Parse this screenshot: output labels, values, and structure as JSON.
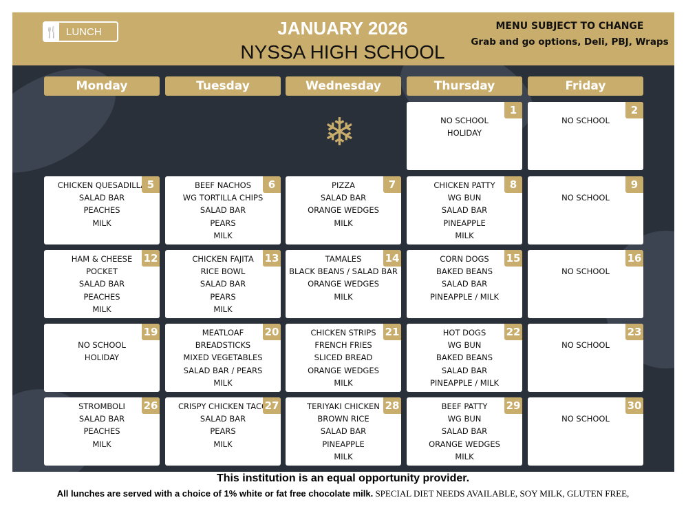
{
  "header": {
    "logo_label": "LUNCH",
    "month": "JANUARY 2026",
    "school": "NYSSA HIGH SCHOOL",
    "notice": "MENU SUBJECT TO CHANGE",
    "options": "Grab and go options, Deli, PBJ, Wraps"
  },
  "days": [
    "Monday",
    "Tuesday",
    "Wednesday",
    "Thursday",
    "Friday"
  ],
  "weeks": [
    [
      null,
      null,
      {
        "icon": "snowflake-icon"
      },
      {
        "num": "1",
        "lines": [
          "NO SCHOOL",
          "HOLIDAY"
        ]
      },
      {
        "num": "2",
        "lines": [
          "NO SCHOOL"
        ]
      }
    ],
    [
      {
        "num": "5",
        "lines": [
          "CHICKEN QUESADILLA",
          "SALAD BAR",
          "PEACHES",
          "MILK"
        ]
      },
      {
        "num": "6",
        "lines": [
          "BEEF NACHOS",
          "WG TORTILLA CHIPS",
          "SALAD BAR",
          "PEARS",
          "MILK"
        ]
      },
      {
        "num": "7",
        "lines": [
          "PIZZA",
          "SALAD BAR",
          "ORANGE WEDGES",
          "MILK"
        ]
      },
      {
        "num": "8",
        "lines": [
          "CHICKEN PATTY",
          "WG BUN",
          "SALAD BAR",
          "PINEAPPLE",
          "MILK"
        ]
      },
      {
        "num": "9",
        "lines": [
          "",
          "NO SCHOOL"
        ]
      }
    ],
    [
      {
        "num": "12",
        "lines": [
          "HAM & CHEESE",
          "POCKET",
          "SALAD BAR",
          "PEACHES",
          "MILK"
        ]
      },
      {
        "num": "13",
        "lines": [
          "CHICKEN FAJITA",
          "RICE BOWL",
          "SALAD BAR",
          "PEARS",
          "MILK"
        ]
      },
      {
        "num": "14",
        "lines": [
          "TAMALES",
          "BLACK BEANS / SALAD BAR",
          "ORANGE WEDGES",
          "MILK"
        ]
      },
      {
        "num": "15",
        "lines": [
          "CORN DOGS",
          "BAKED BEANS",
          "SALAD BAR",
          "PINEAPPLE / MILK"
        ]
      },
      {
        "num": "16",
        "lines": [
          "",
          "NO SCHOOL"
        ]
      }
    ],
    [
      {
        "num": "19",
        "lines": [
          "",
          "NO SCHOOL",
          "HOLIDAY"
        ]
      },
      {
        "num": "20",
        "lines": [
          "MEATLOAF",
          "BREADSTICKS",
          "MIXED VEGETABLES",
          "SALAD BAR / PEARS",
          "MILK"
        ]
      },
      {
        "num": "21",
        "lines": [
          "CHICKEN STRIPS",
          "FRENCH FRIES",
          "SLICED BREAD",
          "ORANGE WEDGES",
          "MILK"
        ]
      },
      {
        "num": "22",
        "lines": [
          "HOT DOGS",
          "WG BUN",
          "BAKED BEANS",
          "SALAD BAR",
          "PINEAPPLE / MILK"
        ]
      },
      {
        "num": "23",
        "lines": [
          "",
          "NO SCHOOL"
        ]
      }
    ],
    [
      {
        "num": "26",
        "lines": [
          "STROMBOLI",
          "SALAD BAR",
          "PEACHES",
          "MILK"
        ]
      },
      {
        "num": "27",
        "lines": [
          "CRISPY CHICKEN TACO",
          "SALAD BAR",
          "PEARS",
          "MILK"
        ]
      },
      {
        "num": "28",
        "lines": [
          "TERIYAKI CHICKEN",
          "BROWN RICE",
          "SALAD BAR",
          "PINEAPPLE",
          "MILK"
        ]
      },
      {
        "num": "29",
        "lines": [
          "BEEF PATTY",
          "WG BUN",
          "SALAD BAR",
          "ORANGE WEDGES",
          "MILK"
        ]
      },
      {
        "num": "30",
        "lines": [
          "",
          "NO SCHOOL"
        ]
      }
    ]
  ],
  "footer": {
    "line1": "This institution is an equal opportunity provider.",
    "line2_bold": "All lunches are served with a choice of 1% white or fat free chocolate milk.",
    "line2_serif": " SPECIAL DIET NEEDS AVAILABLE, SOY MILK, GLUTEN FREE,"
  },
  "colors": {
    "gold": "#c9ad6c",
    "panel": "#2a303a"
  }
}
